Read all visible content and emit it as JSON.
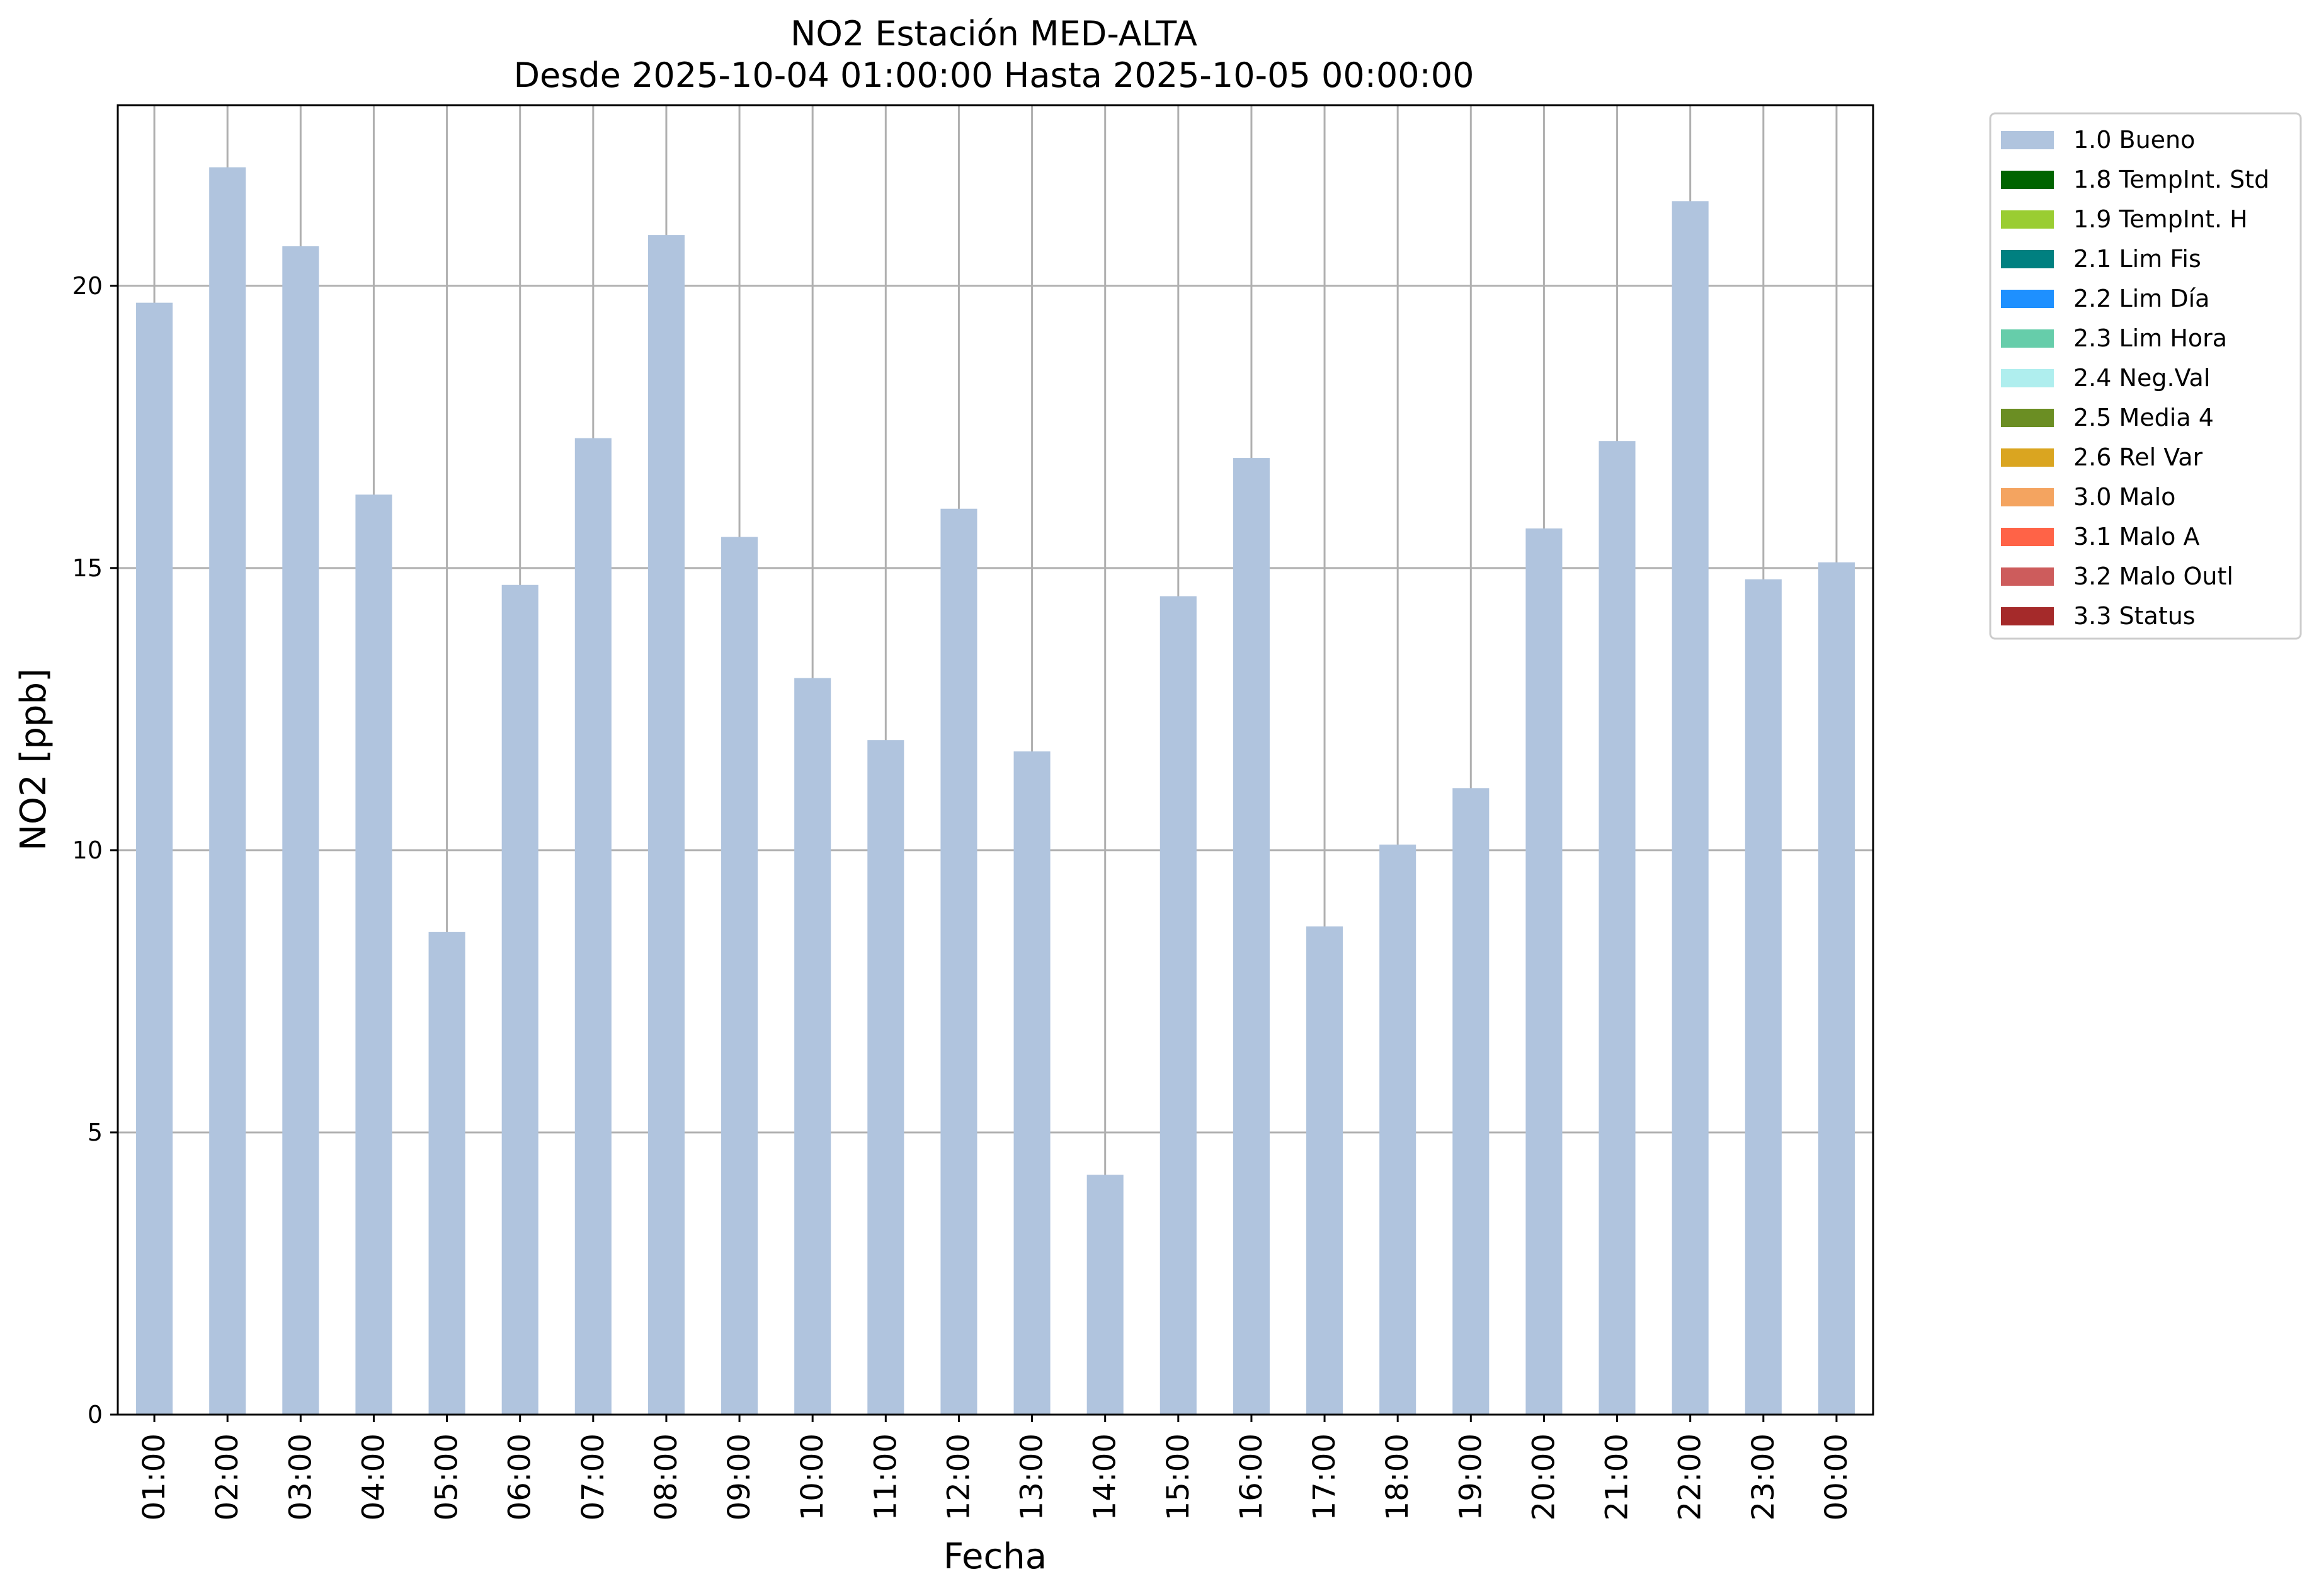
{
  "chart_data": {
    "type": "bar",
    "title": "NO2 Estación MED-ALTA",
    "subtitle": "Desde 2025-10-04 01:00:00 Hasta 2025-10-05 00:00:00",
    "xlabel": "Fecha",
    "ylabel": "NO2 [ppb]",
    "ylim": [
      0,
      23.2
    ],
    "yticks": [
      0,
      5,
      10,
      15,
      20
    ],
    "grid": true,
    "legend_position": "outside-top-right",
    "categories": [
      "01:00",
      "02:00",
      "03:00",
      "04:00",
      "05:00",
      "06:00",
      "07:00",
      "08:00",
      "09:00",
      "10:00",
      "11:00",
      "12:00",
      "13:00",
      "14:00",
      "15:00",
      "16:00",
      "17:00",
      "18:00",
      "19:00",
      "20:00",
      "21:00",
      "22:00",
      "23:00",
      "00:00"
    ],
    "series": [
      {
        "name": "1.0 Bueno",
        "color": "#b0c4de",
        "values": [
          19.7,
          22.1,
          20.7,
          16.3,
          8.55,
          14.7,
          17.3,
          20.9,
          15.55,
          13.05,
          11.95,
          16.05,
          11.75,
          4.25,
          14.5,
          16.95,
          8.65,
          10.1,
          11.1,
          15.7,
          17.25,
          21.5,
          14.8,
          15.1
        ]
      }
    ],
    "legend": [
      {
        "label": "1.0 Bueno",
        "color": "#b0c4de"
      },
      {
        "label": "1.8 TempInt. Std",
        "color": "#006400"
      },
      {
        "label": "1.9 TempInt. H",
        "color": "#9acd32"
      },
      {
        "label": "2.1 Lim Fis",
        "color": "#008080"
      },
      {
        "label": "2.2 Lim Día",
        "color": "#1e90ff"
      },
      {
        "label": "2.3 Lim Hora",
        "color": "#66cdaa"
      },
      {
        "label": "2.4 Neg.Val",
        "color": "#afeeee"
      },
      {
        "label": "2.5 Media 4",
        "color": "#6b8e23"
      },
      {
        "label": "2.6 Rel Var",
        "color": "#daa520"
      },
      {
        "label": "3.0 Malo",
        "color": "#f4a460"
      },
      {
        "label": "3.1 Malo A",
        "color": "#ff6347"
      },
      {
        "label": "3.2 Malo Outl",
        "color": "#cd5c5c"
      },
      {
        "label": "3.3 Status",
        "color": "#a52a2a"
      }
    ]
  }
}
